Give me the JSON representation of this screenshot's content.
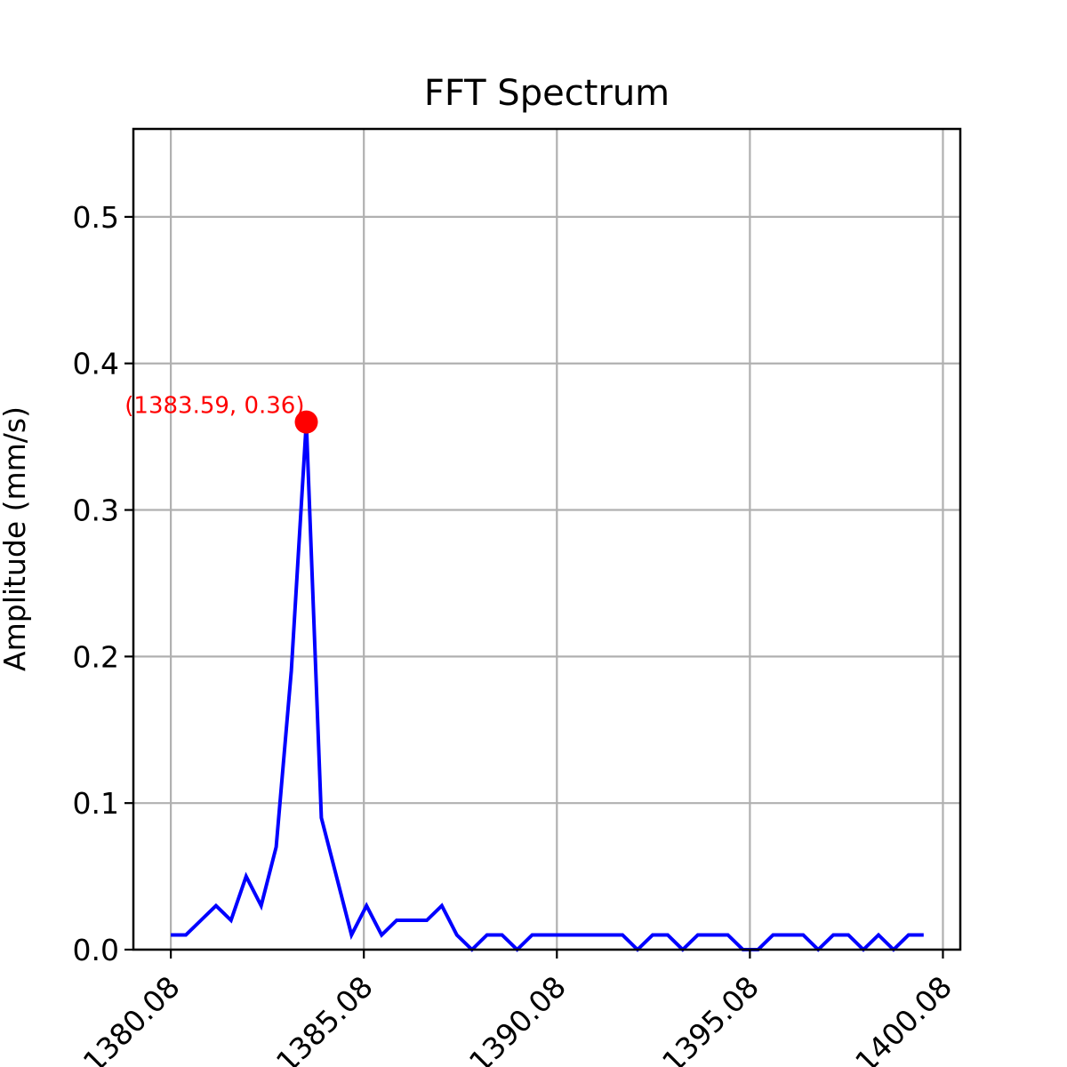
{
  "chart_data": {
    "type": "line",
    "title": "FFT Spectrum",
    "xlabel": "",
    "ylabel": "Amplitude (mm/s)",
    "xlim": [
      1379.11,
      1400.53
    ],
    "ylim": [
      0,
      0.56
    ],
    "grid": true,
    "colors": {
      "line": "#0000ff",
      "marker": "#ff0000",
      "grid": "#b0b0b0",
      "annotation": "#ff0000"
    },
    "x_ticks": [
      1380.08,
      1385.08,
      1390.08,
      1395.08,
      1400.08
    ],
    "x_tick_labels": [
      "1380.08",
      "1385.08",
      "1390.08",
      "1395.08",
      "1400.08"
    ],
    "y_ticks": [
      0.0,
      0.1,
      0.2,
      0.3,
      0.4,
      0.5
    ],
    "y_tick_labels": [
      "0.0",
      "0.1",
      "0.2",
      "0.3",
      "0.4",
      "0.5"
    ],
    "series": [
      {
        "x": [
          1380.08,
          1380.47,
          1380.86,
          1381.25,
          1381.64,
          1382.03,
          1382.42,
          1382.81,
          1383.2,
          1383.59,
          1383.98,
          1384.37,
          1384.76,
          1385.15,
          1385.54,
          1385.93,
          1386.32,
          1386.71,
          1387.1,
          1387.49,
          1387.88,
          1388.27,
          1388.66,
          1389.05,
          1389.44,
          1389.83,
          1390.22,
          1390.61,
          1391.0,
          1391.39,
          1391.78,
          1392.17,
          1392.56,
          1392.95,
          1393.34,
          1393.73,
          1394.12,
          1394.51,
          1394.9,
          1395.29,
          1395.68,
          1396.07,
          1396.46,
          1396.85,
          1397.24,
          1397.63,
          1398.02,
          1398.41,
          1398.8,
          1399.19,
          1399.58
        ],
        "y": [
          0.01,
          0.01,
          0.02,
          0.03,
          0.02,
          0.05,
          0.03,
          0.07,
          0.19,
          0.36,
          0.09,
          0.05,
          0.01,
          0.03,
          0.01,
          0.02,
          0.02,
          0.02,
          0.03,
          0.01,
          0.0,
          0.01,
          0.01,
          0.0,
          0.01,
          0.01,
          0.01,
          0.01,
          0.01,
          0.01,
          0.01,
          0.0,
          0.01,
          0.01,
          0.0,
          0.01,
          0.01,
          0.01,
          0.0,
          0.0,
          0.01,
          0.01,
          0.01,
          0.0,
          0.01,
          0.01,
          0.0,
          0.01,
          0.0,
          0.01,
          0.01
        ]
      }
    ],
    "peak": {
      "x": 1383.59,
      "y": 0.36,
      "label": "(1383.59, 0.36)"
    }
  }
}
